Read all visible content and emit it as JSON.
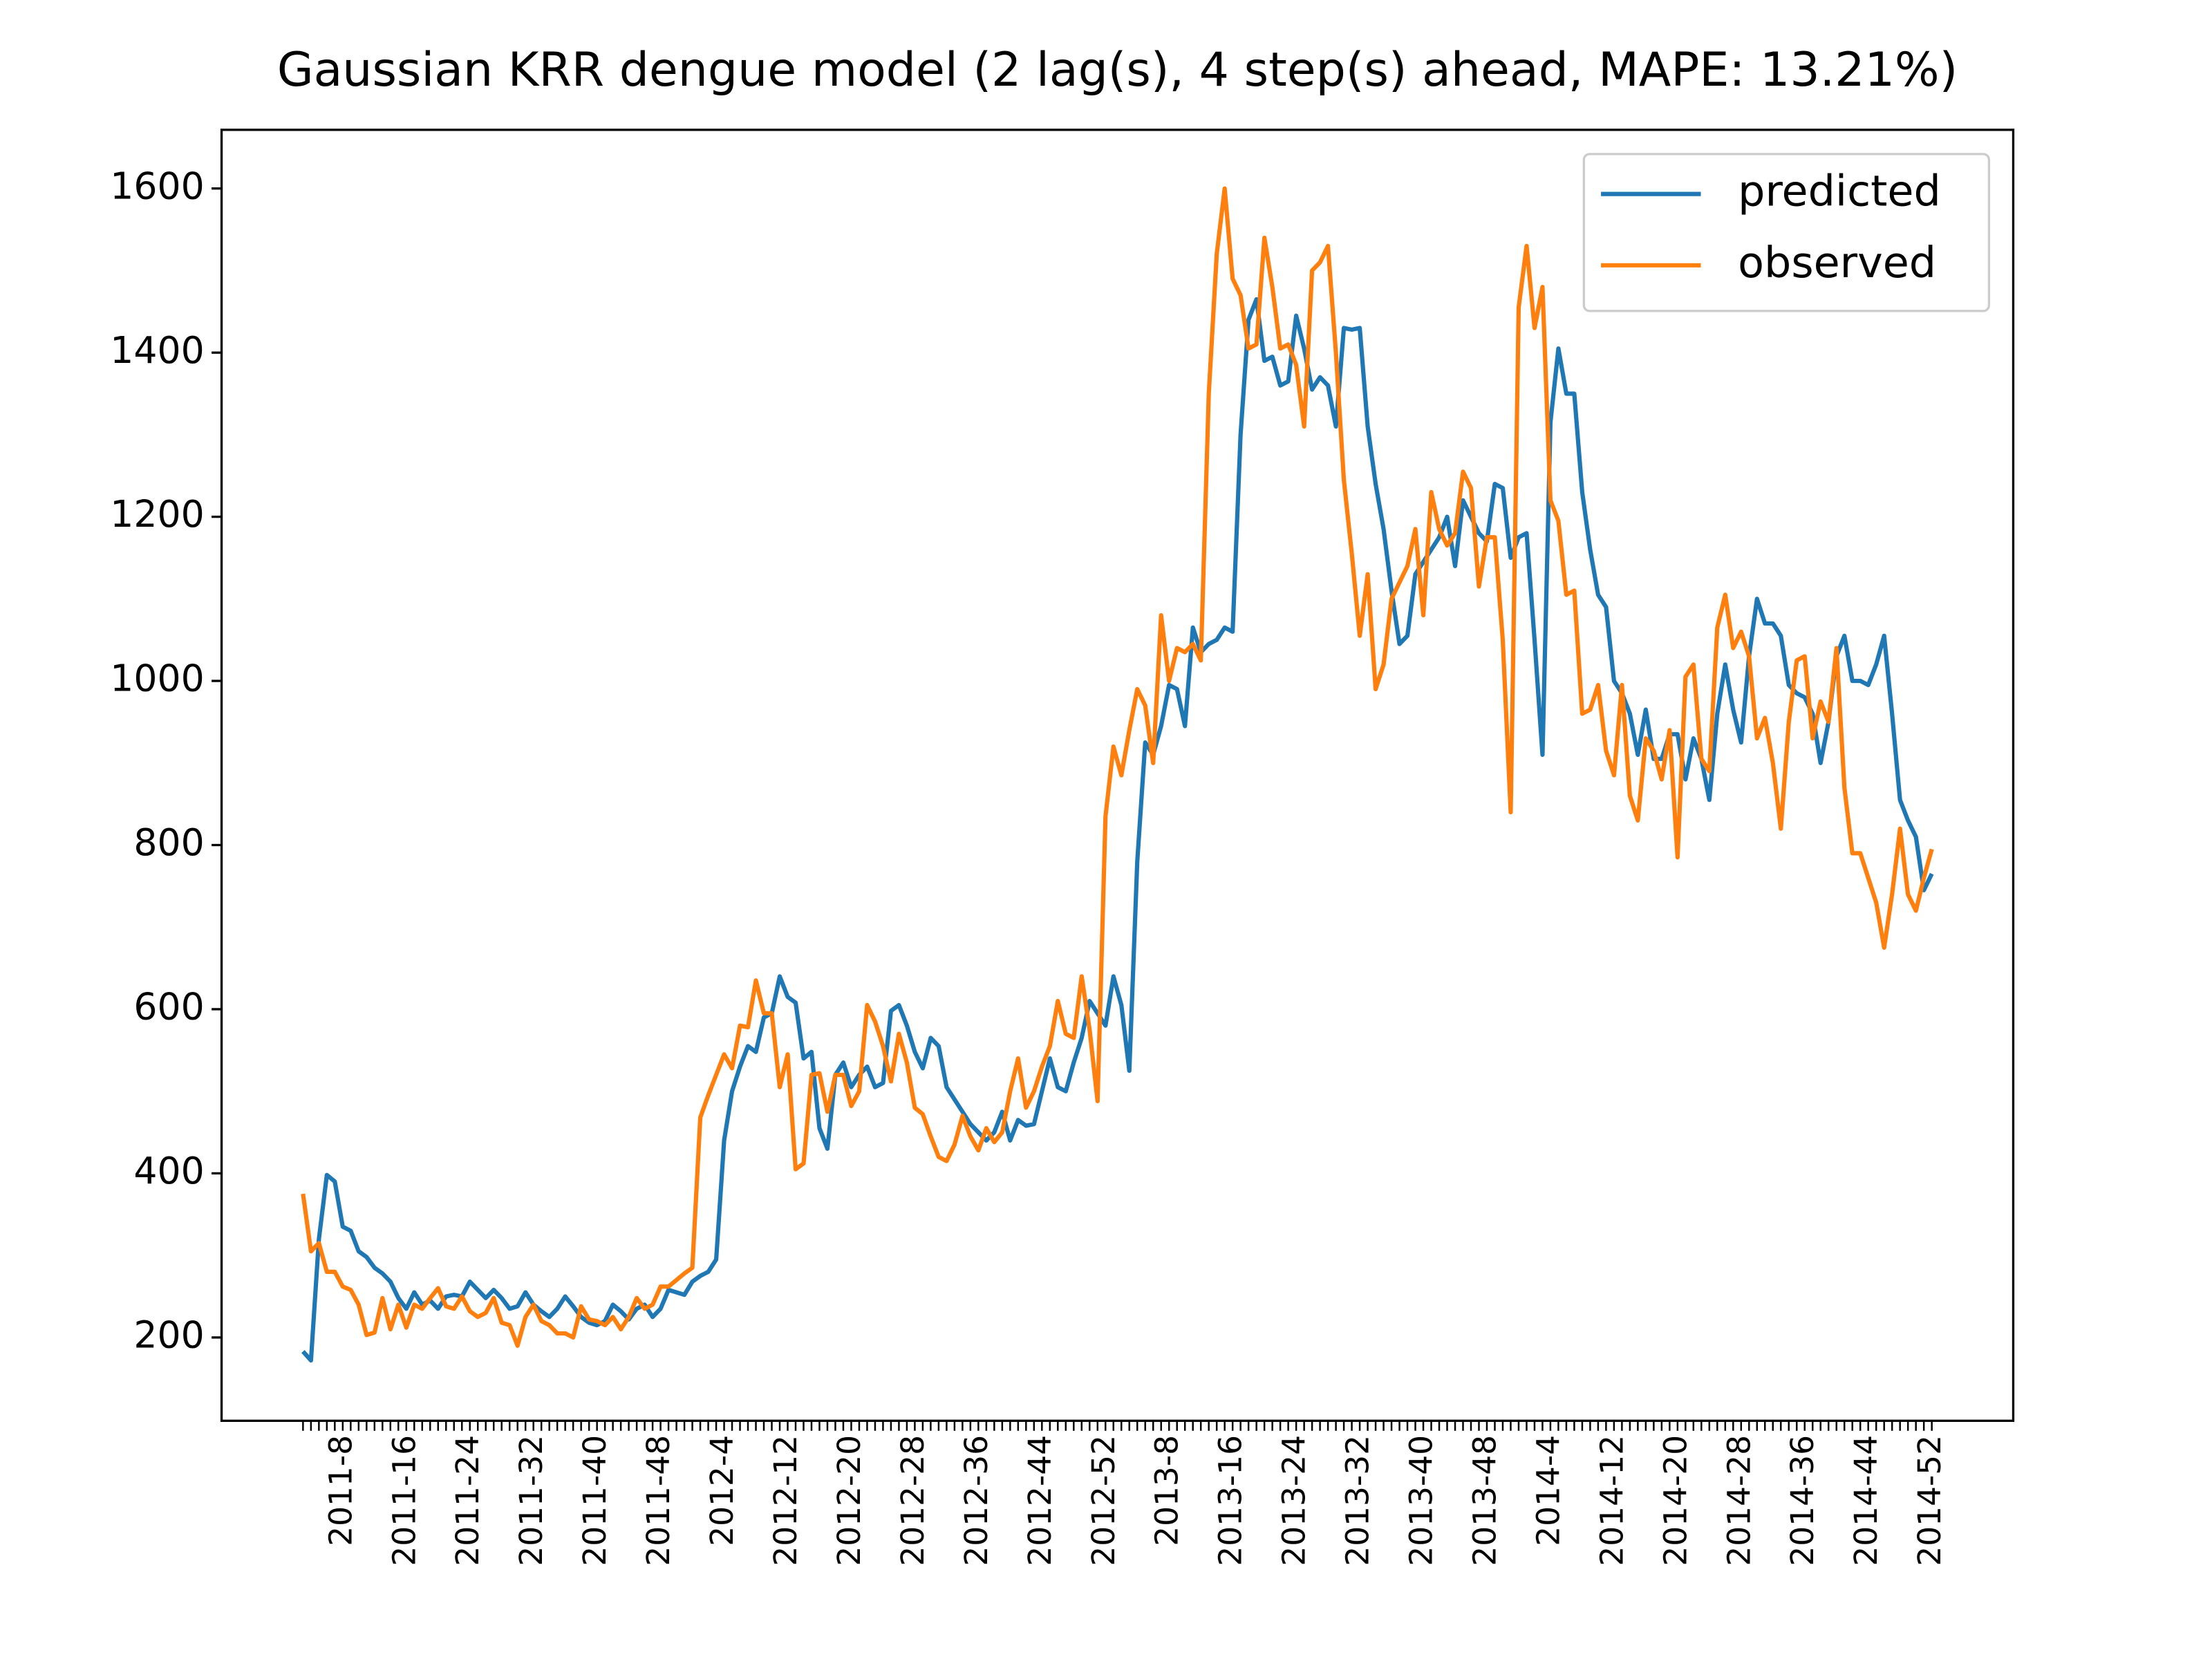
{
  "chart_data": {
    "type": "line",
    "title": "Gaussian KRR dengue model (2 lag(s), 4 step(s) ahead, MAPE: 13.21%)",
    "categories": [
      null,
      null,
      null,
      null,
      null,
      "2011-8",
      null,
      null,
      null,
      null,
      null,
      null,
      null,
      "2011-16",
      null,
      null,
      null,
      null,
      null,
      null,
      null,
      "2011-24",
      null,
      null,
      null,
      null,
      null,
      null,
      null,
      "2011-32",
      null,
      null,
      null,
      null,
      null,
      null,
      null,
      "2011-40",
      null,
      null,
      null,
      null,
      null,
      null,
      null,
      "2011-48",
      null,
      null,
      null,
      null,
      null,
      null,
      null,
      "2012-4",
      null,
      null,
      null,
      null,
      null,
      null,
      null,
      "2012-12",
      null,
      null,
      null,
      null,
      null,
      null,
      null,
      "2012-20",
      null,
      null,
      null,
      null,
      null,
      null,
      null,
      "2012-28",
      null,
      null,
      null,
      null,
      null,
      null,
      null,
      "2012-36",
      null,
      null,
      null,
      null,
      null,
      null,
      null,
      "2012-44",
      null,
      null,
      null,
      null,
      null,
      null,
      null,
      "2012-52",
      null,
      null,
      null,
      null,
      null,
      null,
      null,
      "2013-8",
      null,
      null,
      null,
      null,
      null,
      null,
      null,
      "2013-16",
      null,
      null,
      null,
      null,
      null,
      null,
      null,
      "2013-24",
      null,
      null,
      null,
      null,
      null,
      null,
      null,
      "2013-32",
      null,
      null,
      null,
      null,
      null,
      null,
      null,
      "2013-40",
      null,
      null,
      null,
      null,
      null,
      null,
      null,
      "2013-48",
      null,
      null,
      null,
      null,
      null,
      null,
      null,
      "2014-4",
      null,
      null,
      null,
      null,
      null,
      null,
      null,
      "2014-12",
      null,
      null,
      null,
      null,
      null,
      null,
      null,
      "2014-20",
      null,
      null,
      null,
      null,
      null,
      null,
      null,
      "2014-28",
      null,
      null,
      null,
      null,
      null,
      null,
      null,
      "2014-36",
      null,
      null,
      null,
      null,
      null,
      null,
      null,
      "2014-44",
      null,
      null,
      null,
      null,
      null,
      null,
      null,
      "2014-52"
    ],
    "series": [
      {
        "name": "predicted",
        "color": "#1f77b4",
        "values": [
          183,
          172,
          320,
          398,
          390,
          335,
          330,
          305,
          298,
          285,
          278,
          268,
          248,
          235,
          255,
          240,
          245,
          235,
          250,
          252,
          250,
          268,
          258,
          248,
          258,
          248,
          235,
          238,
          255,
          240,
          232,
          225,
          235,
          250,
          238,
          225,
          218,
          215,
          220,
          240,
          232,
          222,
          235,
          240,
          225,
          235,
          258,
          255,
          252,
          268,
          275,
          280,
          295,
          440,
          500,
          530,
          555,
          548,
          590,
          595,
          640,
          615,
          608,
          540,
          548,
          455,
          430,
          520,
          535,
          505,
          520,
          530,
          505,
          510,
          598,
          605,
          580,
          548,
          528,
          565,
          555,
          505,
          490,
          475,
          460,
          450,
          440,
          450,
          475,
          440,
          465,
          458,
          460,
          500,
          540,
          505,
          500,
          535,
          565,
          610,
          595,
          580,
          640,
          605,
          525,
          780,
          925,
          910,
          945,
          995,
          990,
          945,
          1065,
          1035,
          1045,
          1050,
          1065,
          1060,
          1300,
          1440,
          1465,
          1390,
          1395,
          1360,
          1365,
          1445,
          1405,
          1355,
          1370,
          1360,
          1310,
          1430,
          1428,
          1430,
          1310,
          1240,
          1185,
          1110,
          1045,
          1055,
          1130,
          1145,
          1160,
          1175,
          1200,
          1140,
          1220,
          1200,
          1180,
          1170,
          1240,
          1235,
          1150,
          1175,
          1180,
          1050,
          910,
          1315,
          1405,
          1350,
          1350,
          1230,
          1160,
          1105,
          1090,
          1000,
          985,
          960,
          910,
          965,
          905,
          905,
          935,
          935,
          880,
          930,
          905,
          855,
          960,
          1020,
          965,
          925,
          1030,
          1100,
          1070,
          1070,
          1055,
          995,
          985,
          980,
          960,
          900,
          950,
          1030,
          1055,
          1000,
          1000,
          995,
          1020,
          1055,
          960,
          855,
          830,
          810,
          745,
          765
        ]
      },
      {
        "name": "observed",
        "color": "#ff7f0e",
        "values": [
          375,
          305,
          315,
          280,
          280,
          262,
          258,
          240,
          203,
          206,
          248,
          210,
          240,
          212,
          240,
          235,
          248,
          260,
          238,
          235,
          250,
          232,
          225,
          230,
          248,
          218,
          215,
          190,
          225,
          240,
          220,
          215,
          205,
          205,
          200,
          238,
          222,
          220,
          215,
          225,
          210,
          225,
          248,
          235,
          240,
          262,
          262,
          270,
          278,
          285,
          468,
          495,
          520,
          545,
          528,
          580,
          578,
          635,
          595,
          595,
          505,
          545,
          405,
          412,
          520,
          522,
          475,
          520,
          520,
          482,
          500,
          605,
          585,
          555,
          512,
          570,
          535,
          480,
          472,
          445,
          420,
          415,
          435,
          470,
          445,
          428,
          455,
          438,
          450,
          500,
          540,
          480,
          500,
          530,
          555,
          610,
          570,
          565,
          640,
          575,
          488,
          835,
          920,
          885,
          940,
          990,
          970,
          900,
          1080,
          1000,
          1040,
          1035,
          1045,
          1025,
          1350,
          1520,
          1600,
          1490,
          1470,
          1405,
          1410,
          1540,
          1480,
          1405,
          1410,
          1385,
          1310,
          1500,
          1510,
          1530,
          1400,
          1245,
          1155,
          1055,
          1130,
          990,
          1020,
          1100,
          1120,
          1140,
          1185,
          1080,
          1230,
          1185,
          1165,
          1180,
          1255,
          1235,
          1115,
          1175,
          1175,
          1050,
          840,
          1455,
          1530,
          1430,
          1480,
          1220,
          1195,
          1105,
          1110,
          960,
          965,
          995,
          915,
          885,
          995,
          860,
          830,
          930,
          915,
          880,
          940,
          785,
          1005,
          1020,
          905,
          890,
          1065,
          1105,
          1040,
          1060,
          1030,
          930,
          955,
          900,
          820,
          950,
          1025,
          1030,
          930,
          975,
          950,
          1040,
          870,
          790,
          790,
          760,
          730,
          675,
          740,
          820,
          740,
          720,
          760,
          795
        ]
      }
    ],
    "ylim": [
      98.5,
      1671.5
    ],
    "yticks": [
      200,
      400,
      600,
      800,
      1000,
      1200,
      1400,
      1600
    ],
    "legend": "upper right"
  }
}
